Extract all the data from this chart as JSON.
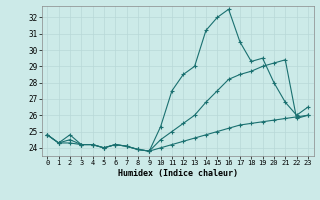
{
  "xlabel": "Humidex (Indice chaleur)",
  "bg_color": "#cceae8",
  "line_color": "#1a7070",
  "grid_color": "#b8d8d8",
  "x_ticks": [
    0,
    1,
    2,
    3,
    4,
    5,
    6,
    7,
    8,
    9,
    10,
    11,
    12,
    13,
    14,
    15,
    16,
    17,
    18,
    19,
    20,
    21,
    22,
    23
  ],
  "y_ticks": [
    24,
    25,
    26,
    27,
    28,
    29,
    30,
    31,
    32
  ],
  "ylim": [
    23.5,
    32.7
  ],
  "xlim": [
    -0.5,
    23.5
  ],
  "curve1_x": [
    0,
    1,
    2,
    3,
    4,
    5,
    6,
    7,
    8,
    9,
    10,
    11,
    12,
    13,
    14,
    15,
    16,
    17,
    18,
    19,
    20,
    21,
    22,
    23
  ],
  "curve1_y": [
    24.8,
    24.3,
    24.8,
    24.2,
    24.2,
    24.0,
    24.2,
    24.1,
    23.9,
    23.8,
    25.3,
    27.5,
    28.5,
    29.0,
    31.2,
    32.0,
    32.5,
    30.5,
    29.3,
    29.5,
    28.0,
    26.8,
    26.0,
    26.5
  ],
  "curve2_x": [
    0,
    1,
    2,
    3,
    4,
    5,
    6,
    7,
    8,
    9,
    10,
    11,
    12,
    13,
    14,
    15,
    16,
    17,
    18,
    19,
    20,
    21,
    22,
    23
  ],
  "curve2_y": [
    24.8,
    24.3,
    24.5,
    24.2,
    24.2,
    24.0,
    24.2,
    24.1,
    23.9,
    23.8,
    24.5,
    25.0,
    25.5,
    26.0,
    26.8,
    27.5,
    28.2,
    28.5,
    28.7,
    29.0,
    29.2,
    29.4,
    25.8,
    26.0
  ],
  "curve3_x": [
    0,
    1,
    2,
    3,
    4,
    5,
    6,
    7,
    8,
    9,
    10,
    11,
    12,
    13,
    14,
    15,
    16,
    17,
    18,
    19,
    20,
    21,
    22,
    23
  ],
  "curve3_y": [
    24.8,
    24.3,
    24.3,
    24.2,
    24.2,
    24.0,
    24.2,
    24.1,
    23.9,
    23.8,
    24.0,
    24.2,
    24.4,
    24.6,
    24.8,
    25.0,
    25.2,
    25.4,
    25.5,
    25.6,
    25.7,
    25.8,
    25.9,
    26.0
  ]
}
